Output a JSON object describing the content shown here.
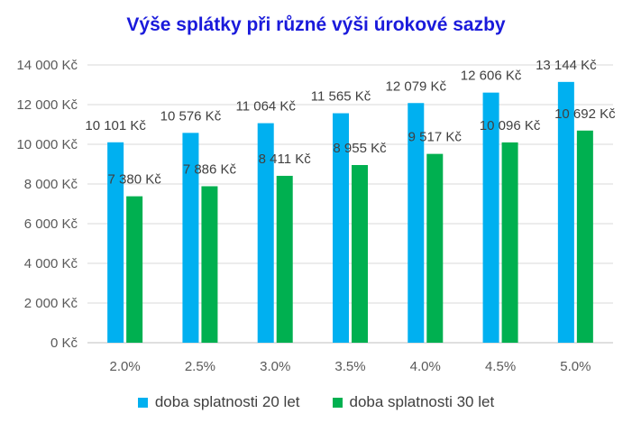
{
  "chart_data": {
    "type": "bar",
    "title": "Výše splátky při různé výši úrokové sazby",
    "xlabel": "",
    "ylabel": "",
    "categories": [
      "2.0%",
      "2.5%",
      "3.0%",
      "3.5%",
      "4.0%",
      "4.5%",
      "5.0%"
    ],
    "series": [
      {
        "name": "doba splatnosti 20 let",
        "color": "#00b0f0",
        "values": [
          10101,
          10576,
          11064,
          11565,
          12079,
          12606,
          13144
        ],
        "labels": [
          "10 101 Kč",
          "10 576 Kč",
          "11 064 Kč",
          "11 565 Kč",
          "12 079 Kč",
          "12 606 Kč",
          "13 144 Kč"
        ]
      },
      {
        "name": "doba splatnosti 30 let",
        "color": "#00b050",
        "values": [
          7380,
          7886,
          8411,
          8955,
          9517,
          10096,
          10692
        ],
        "labels": [
          "7 380 Kč",
          "7 886 Kč",
          "8 411 Kč",
          "8 955 Kč",
          "9 517 Kč",
          "10 096 Kč",
          "10 692 Kč"
        ]
      }
    ],
    "ylim": [
      0,
      14000
    ],
    "yticks": [
      0,
      2000,
      4000,
      6000,
      8000,
      10000,
      12000,
      14000
    ],
    "ytick_labels": [
      "0 Kč",
      "2 000 Kč",
      "4 000 Kč",
      "6 000 Kč",
      "8 000 Kč",
      "10 000 Kč",
      "12 000 Kč",
      "14 000 Kč"
    ],
    "grid": true,
    "legend_position": "bottom"
  }
}
